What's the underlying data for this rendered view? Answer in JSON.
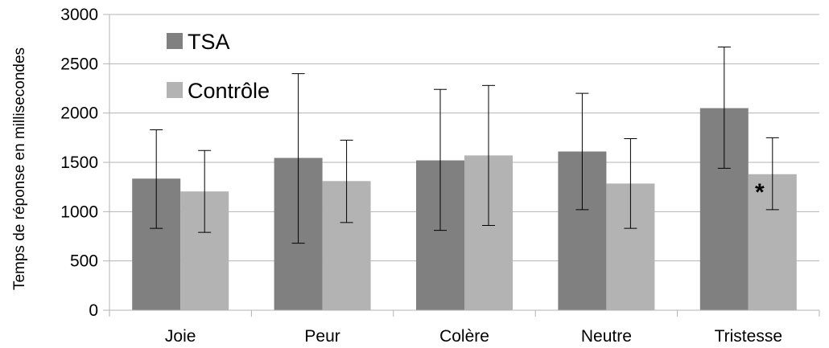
{
  "chart_data": {
    "type": "bar",
    "title": "",
    "xlabel": "",
    "ylabel": "Temps de réponse en millisecondes",
    "ylim": [
      0,
      3000
    ],
    "yticks": [
      0,
      500,
      1000,
      1500,
      2000,
      2500,
      3000
    ],
    "grid": true,
    "legend_position": "top-left",
    "categories": [
      "Joie",
      "Peur",
      "Colère",
      "Neutre",
      "Tristesse"
    ],
    "series": [
      {
        "name": "TSA",
        "color": "#808080",
        "values": [
          1335,
          1545,
          1520,
          1610,
          2050
        ],
        "error_low": [
          830,
          680,
          810,
          1020,
          1440
        ],
        "error_high": [
          1830,
          2400,
          2240,
          2200,
          2670
        ]
      },
      {
        "name": "Contrôle",
        "color": "#b3b3b3",
        "values": [
          1205,
          1310,
          1570,
          1285,
          1380
        ],
        "error_low": [
          790,
          890,
          860,
          830,
          1020
        ],
        "error_high": [
          1620,
          1725,
          2280,
          1740,
          1750
        ]
      }
    ],
    "annotations": [
      {
        "text": "*",
        "category": "Tristesse",
        "y": 1200
      }
    ]
  }
}
